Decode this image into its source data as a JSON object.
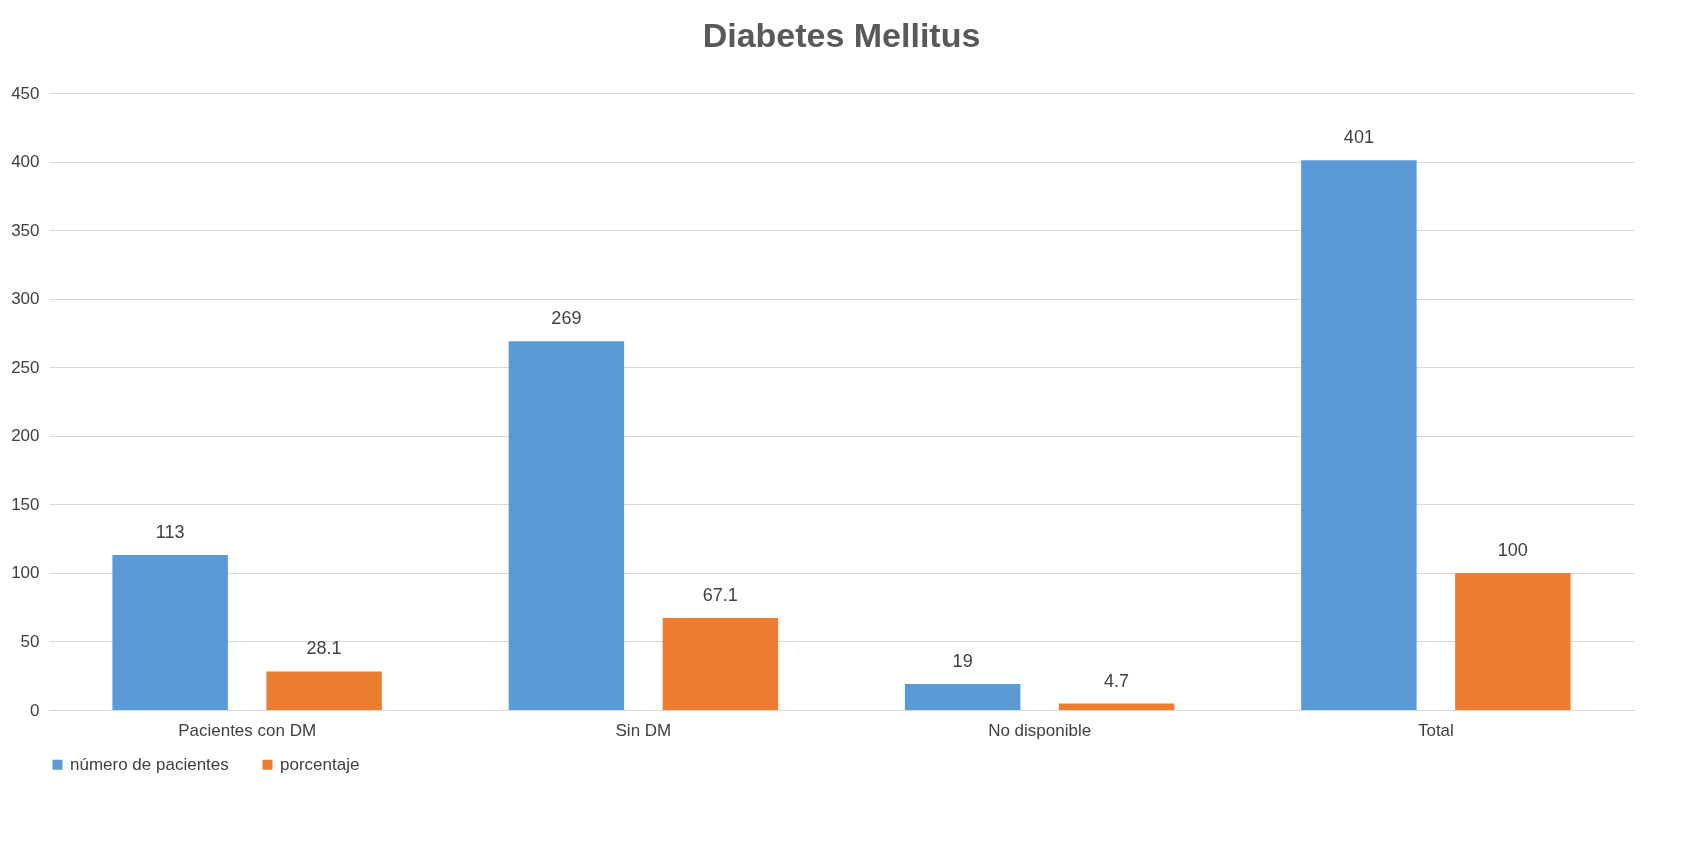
{
  "chart_data": {
    "type": "bar",
    "title": "Diabetes Mellitus",
    "categories": [
      "Pacientes con DM",
      "Sin DM",
      "No disponible",
      "Total"
    ],
    "series": [
      {
        "name": "número de pacientes",
        "color": "#5b9bd5",
        "values": [
          113,
          269,
          19,
          401
        ]
      },
      {
        "name": "porcentaje",
        "color": "#ed7d31",
        "values": [
          28.1,
          67.1,
          4.7,
          100
        ]
      }
    ],
    "ylim": [
      0,
      450
    ],
    "yticks": [
      0,
      50,
      100,
      150,
      200,
      250,
      300,
      350,
      400,
      450
    ],
    "grid": "y",
    "legend": "bottom",
    "data_labels": true
  }
}
